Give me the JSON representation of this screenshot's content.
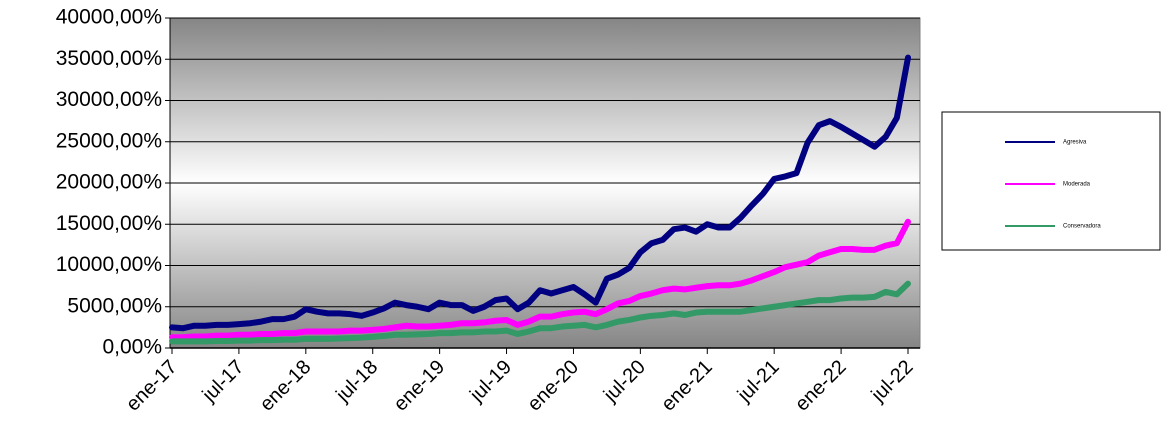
{
  "chart_data": {
    "type": "line",
    "categories": [
      "ene-17",
      null,
      null,
      null,
      null,
      null,
      "jul-17",
      null,
      null,
      null,
      null,
      null,
      "ene-18",
      null,
      null,
      null,
      null,
      null,
      "jul-18",
      null,
      null,
      null,
      null,
      null,
      "ene-19",
      null,
      null,
      null,
      null,
      null,
      "jul-19",
      null,
      null,
      null,
      null,
      null,
      "ene-20",
      null,
      null,
      null,
      null,
      null,
      "jul-20",
      null,
      null,
      null,
      null,
      null,
      "ene-21",
      null,
      null,
      null,
      null,
      null,
      "jul-21",
      null,
      null,
      null,
      null,
      null,
      "ene-22",
      null,
      null,
      null,
      null,
      null,
      "jul-22"
    ],
    "series": [
      {
        "name": "Agresiva",
        "color": "#000080",
        "values": [
          2500,
          2400,
          2700,
          2700,
          2800,
          2800,
          2900,
          3000,
          3200,
          3500,
          3500,
          3800,
          4700,
          4400,
          4200,
          4200,
          4100,
          3900,
          4300,
          4800,
          5500,
          5200,
          5000,
          4700,
          5500,
          5200,
          5200,
          4500,
          5000,
          5800,
          6000,
          4700,
          5500,
          7000,
          6600,
          7000,
          7400,
          6500,
          5500,
          8400,
          8900,
          9700,
          11600,
          12700,
          13100,
          14400,
          14600,
          14100,
          15000,
          14600,
          14600,
          15800,
          17300,
          18700,
          20500,
          20800,
          21200,
          24900,
          27000,
          27500,
          26800,
          26000,
          25200,
          24400,
          25600,
          27900,
          35200
        ]
      },
      {
        "name": "Moderada",
        "color": "#ff00ff",
        "values": [
          1300,
          1300,
          1400,
          1400,
          1500,
          1500,
          1600,
          1600,
          1700,
          1700,
          1800,
          1800,
          2000,
          2000,
          2000,
          2000,
          2100,
          2100,
          2200,
          2300,
          2500,
          2700,
          2600,
          2600,
          2700,
          2800,
          3000,
          3000,
          3100,
          3300,
          3400,
          2800,
          3200,
          3800,
          3800,
          4100,
          4300,
          4400,
          4100,
          4700,
          5400,
          5700,
          6300,
          6600,
          7000,
          7200,
          7100,
          7300,
          7500,
          7600,
          7600,
          7800,
          8200,
          8700,
          9200,
          9800,
          10100,
          10400,
          11200,
          11600,
          12000,
          12000,
          11900,
          11900,
          12400,
          12700,
          15300
        ]
      },
      {
        "name": "Conservadora",
        "color": "#339966",
        "values": [
          800,
          800,
          800,
          800,
          850,
          850,
          900,
          900,
          950,
          950,
          1000,
          1000,
          1100,
          1100,
          1100,
          1150,
          1200,
          1250,
          1350,
          1450,
          1600,
          1600,
          1650,
          1700,
          1800,
          1800,
          1900,
          1900,
          2000,
          2000,
          2100,
          1700,
          2000,
          2400,
          2400,
          2600,
          2700,
          2800,
          2500,
          2800,
          3200,
          3400,
          3700,
          3900,
          4000,
          4200,
          4000,
          4300,
          4400,
          4400,
          4400,
          4400,
          4600,
          4800,
          5000,
          5200,
          5400,
          5600,
          5800,
          5800,
          6000,
          6100,
          6100,
          6200,
          6800,
          6500,
          7800
        ]
      }
    ],
    "ylim": [
      0,
      40000
    ],
    "yticks": [
      {
        "value": 0,
        "label": "0,00%"
      },
      {
        "value": 5000,
        "label": "5000,00%"
      },
      {
        "value": 10000,
        "label": "10000,00%"
      },
      {
        "value": 15000,
        "label": "15000,00%"
      },
      {
        "value": 20000,
        "label": "20000,00%"
      },
      {
        "value": 25000,
        "label": "25000,00%"
      },
      {
        "value": 30000,
        "label": "30000,00%"
      },
      {
        "value": 35000,
        "label": "35000,00%"
      },
      {
        "value": 40000,
        "label": "40000,00%"
      }
    ],
    "grid": true,
    "legend": "right"
  }
}
